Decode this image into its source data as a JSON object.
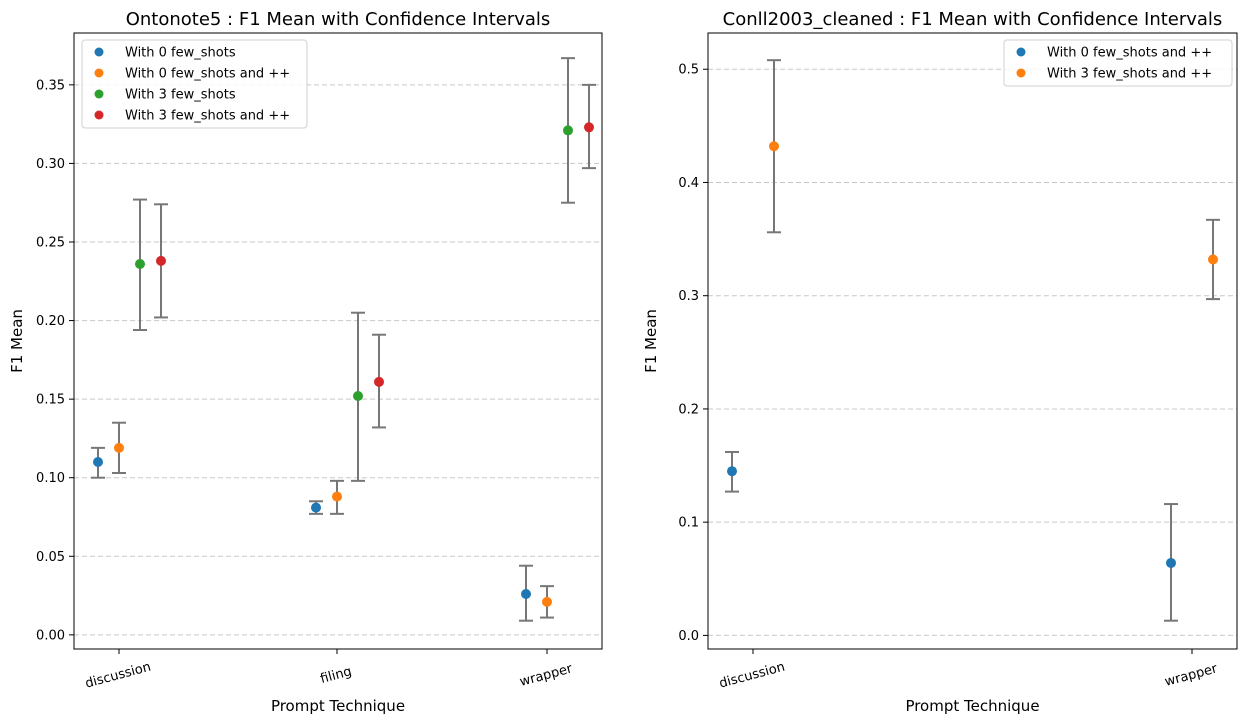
{
  "chart_data": [
    {
      "type": "scatter",
      "title": "Ontonote5 : F1 Mean with Confidence Intervals",
      "xlabel": "Prompt Technique",
      "ylabel": "F1 Mean",
      "categories": [
        "discussion",
        "filing",
        "wrapper"
      ],
      "ylim": [
        -0.009,
        0.383
      ],
      "yticks": [
        0.0,
        0.05,
        0.1,
        0.15,
        0.2,
        0.25,
        0.3,
        0.35
      ],
      "ytick_labels": [
        "0.00",
        "0.05",
        "0.10",
        "0.15",
        "0.20",
        "0.25",
        "0.30",
        "0.35"
      ],
      "grid": "horizontal dashed",
      "legend_position": "top-left",
      "series": [
        {
          "name": "With 0 few_shots",
          "color": "#1f77b4",
          "values": [
            0.11,
            0.081,
            0.026
          ],
          "lower": [
            0.1,
            0.077,
            0.009
          ],
          "upper": [
            0.119,
            0.085,
            0.044
          ]
        },
        {
          "name": "With 0 few_shots and ++",
          "color": "#ff7f0e",
          "values": [
            0.119,
            0.088,
            0.021
          ],
          "lower": [
            0.103,
            0.077,
            0.011
          ],
          "upper": [
            0.135,
            0.098,
            0.031
          ]
        },
        {
          "name": "With 3 few_shots",
          "color": "#2ca02c",
          "values": [
            0.236,
            0.152,
            0.321
          ],
          "lower": [
            0.194,
            0.098,
            0.275
          ],
          "upper": [
            0.277,
            0.205,
            0.367
          ]
        },
        {
          "name": "With 3 few_shots and ++",
          "color": "#d62728",
          "values": [
            0.238,
            0.161,
            0.323
          ],
          "lower": [
            0.202,
            0.132,
            0.297
          ],
          "upper": [
            0.274,
            0.191,
            0.35
          ]
        }
      ]
    },
    {
      "type": "scatter",
      "title": "Conll2003_cleaned : F1 Mean with Confidence Intervals",
      "xlabel": "Prompt Technique",
      "ylabel": "F1 Mean",
      "categories": [
        "discussion",
        "wrapper"
      ],
      "ylim": [
        -0.012,
        0.532
      ],
      "yticks": [
        0.0,
        0.1,
        0.2,
        0.3,
        0.4,
        0.5
      ],
      "ytick_labels": [
        "0.0",
        "0.1",
        "0.2",
        "0.3",
        "0.4",
        "0.5"
      ],
      "grid": "horizontal dashed",
      "legend_position": "top-right",
      "series": [
        {
          "name": "With 0 few_shots and ++",
          "color": "#1f77b4",
          "values": [
            0.145,
            0.064
          ],
          "lower": [
            0.127,
            0.013
          ],
          "upper": [
            0.162,
            0.116
          ]
        },
        {
          "name": "With 3 few_shots and ++",
          "color": "#ff7f0e",
          "values": [
            0.432,
            0.332
          ],
          "lower": [
            0.356,
            0.297
          ],
          "upper": [
            0.508,
            0.367
          ]
        }
      ]
    }
  ]
}
